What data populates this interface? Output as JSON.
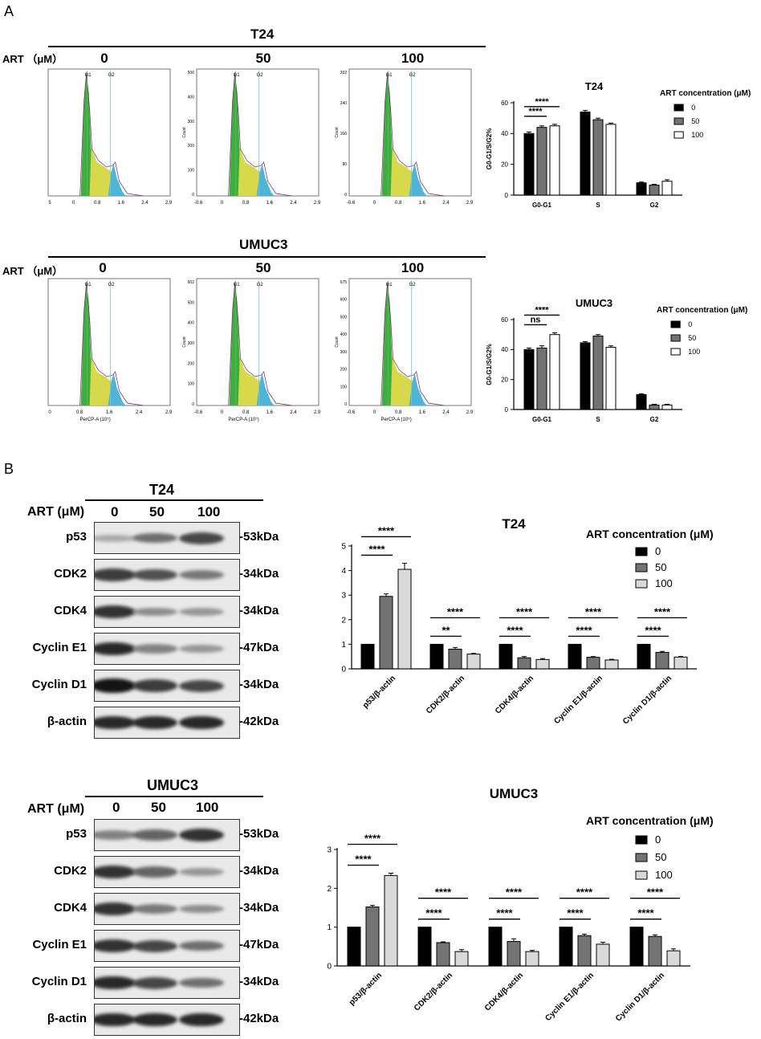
{
  "panels": {
    "a": "A",
    "b": "B"
  },
  "flow": {
    "blocks": [
      {
        "cell": "T24",
        "art_label": "ART （μM）",
        "concs": [
          "0",
          "50",
          "100"
        ],
        "histos": [
          {
            "yticks": [],
            "xticks": [
              "5",
              "0",
              "0.8",
              "1.6",
              "2.4",
              "2.9"
            ],
            "xlabel": "",
            "ylabel": ""
          },
          {
            "yticks": [
              "506",
              "400",
              "300",
              "200",
              "100",
              "0"
            ],
            "xticks": [
              "-0.6",
              "0",
              "0.8",
              "1.6",
              "2.4",
              "2.9"
            ],
            "xlabel": "",
            "ylabel": "Count"
          },
          {
            "yticks": [
              "332",
              "240",
              "160",
              "80",
              "0"
            ],
            "xticks": [
              "-0.6",
              "0",
              "0.8",
              "1.6",
              "2.4",
              "2.9"
            ],
            "xlabel": "",
            "ylabel": "Count"
          }
        ]
      },
      {
        "cell": "UMUC3",
        "art_label": "ART （μM）",
        "concs": [
          "0",
          "50",
          "100"
        ],
        "histos": [
          {
            "yticks": [],
            "xticks": [
              "0",
              "0.8",
              "1.6",
              "2.4",
              "2.9"
            ],
            "xlabel": "PerCP-A (10⁵)",
            "ylabel": ""
          },
          {
            "yticks": [
              "602",
              "500",
              "400",
              "300",
              "200",
              "100",
              "0"
            ],
            "xticks": [
              "-0.6",
              "0",
              "0.8",
              "1.6",
              "2.4",
              "2.9"
            ],
            "xlabel": "PerCP-A (10⁵)",
            "ylabel": "Count"
          },
          {
            "yticks": [
              "675",
              "600",
              "500",
              "400",
              "300",
              "200",
              "100",
              "0"
            ],
            "xticks": [
              "-0.6",
              "0",
              "0.8",
              "1.6",
              "2.4",
              "2.9"
            ],
            "xlabel": "PerCP-A (10⁵)",
            "ylabel": "Count"
          }
        ]
      }
    ],
    "gate_labels": [
      "G1",
      "G2"
    ]
  },
  "western": {
    "blocks": [
      {
        "cell": "T24",
        "art_label": "ART (μM)",
        "concs": [
          "0",
          "50",
          "100"
        ],
        "rows": [
          {
            "protein": "p53",
            "kda": "-53kDa",
            "intensity": [
              0.25,
              0.55,
              0.75
            ]
          },
          {
            "protein": "CDK2",
            "kda": "-34kDa",
            "intensity": [
              0.8,
              0.7,
              0.5
            ]
          },
          {
            "protein": "CDK4",
            "kda": "-34kDa",
            "intensity": [
              0.85,
              0.4,
              0.35
            ]
          },
          {
            "protein": "Cyclin E1",
            "kda": "-47kDa",
            "intensity": [
              0.9,
              0.45,
              0.35
            ]
          },
          {
            "protein": "Cyclin D1",
            "kda": "-34kDa",
            "intensity": [
              1.0,
              0.8,
              0.75
            ]
          },
          {
            "protein": "β-actin",
            "kda": "-42kDa",
            "intensity": [
              0.9,
              0.9,
              0.9
            ]
          }
        ]
      },
      {
        "cell": "UMUC3",
        "art_label": "ART (μM)",
        "concs": [
          "0",
          "50",
          "100"
        ],
        "rows": [
          {
            "protein": "p53",
            "kda": "-53kDa",
            "intensity": [
              0.45,
              0.6,
              0.85
            ]
          },
          {
            "protein": "CDK2",
            "kda": "-34kDa",
            "intensity": [
              0.85,
              0.6,
              0.35
            ]
          },
          {
            "protein": "CDK4",
            "kda": "-34kDa",
            "intensity": [
              0.85,
              0.5,
              0.4
            ]
          },
          {
            "protein": "Cyclin E1",
            "kda": "-47kDa",
            "intensity": [
              0.85,
              0.75,
              0.55
            ]
          },
          {
            "protein": "Cyclin D1",
            "kda": "-34kDa",
            "intensity": [
              0.9,
              0.75,
              0.55
            ]
          },
          {
            "protein": "β-actin",
            "kda": "-42kDa",
            "intensity": [
              0.9,
              0.9,
              0.9
            ]
          }
        ]
      }
    ]
  },
  "colors": {
    "c0": "#000000",
    "c50": "#737373",
    "c100_flow": "#ffffff",
    "c100_wb": "#d9d9d9"
  },
  "chart_data": [
    {
      "type": "bar",
      "title": "T24",
      "ylabel": "G0-G1/S/G2%",
      "categories": [
        "G0-G1",
        "S",
        "G2"
      ],
      "legend_title": "ART concentration (μM)",
      "ylim": [
        0,
        60
      ],
      "yticks": [
        0,
        20,
        40,
        60
      ],
      "series": [
        {
          "name": "0",
          "values": [
            40,
            54,
            8
          ],
          "errors": [
            1.0,
            1.0,
            0.5
          ]
        },
        {
          "name": "50",
          "values": [
            44,
            49,
            6.5
          ],
          "errors": [
            1.0,
            1.0,
            0.5
          ]
        },
        {
          "name": "100",
          "values": [
            45,
            46,
            9
          ],
          "errors": [
            1.0,
            0.8,
            1.0
          ]
        }
      ],
      "annotations": [
        {
          "text": "****",
          "from": 0,
          "to": 1,
          "cat": 0
        },
        {
          "text": "****",
          "from": 0,
          "to": 2,
          "cat": 0
        }
      ]
    },
    {
      "type": "bar",
      "title": "UMUC3",
      "ylabel": "G0-G1/S/G2%",
      "categories": [
        "G0-G1",
        "S",
        "G2"
      ],
      "legend_title": "ART concentration (μM)",
      "ylim": [
        0,
        60
      ],
      "yticks": [
        0,
        20,
        40,
        60
      ],
      "series": [
        {
          "name": "0",
          "values": [
            40,
            44.5,
            10
          ],
          "errors": [
            1.0,
            0.8,
            0.5
          ]
        },
        {
          "name": "50",
          "values": [
            41,
            49,
            3
          ],
          "errors": [
            1.5,
            1.0,
            0.5
          ]
        },
        {
          "name": "100",
          "values": [
            50,
            41.5,
            3
          ],
          "errors": [
            1.2,
            1.0,
            0.5
          ]
        }
      ],
      "annotations": [
        {
          "text": "ns",
          "from": 0,
          "to": 1,
          "cat": 0
        },
        {
          "text": "****",
          "from": 0,
          "to": 2,
          "cat": 0
        }
      ]
    },
    {
      "type": "bar",
      "title": "T24",
      "ylabel": "",
      "categories": [
        "p53/β-actin",
        "CDK2/β-actin",
        "CDK4/β-actin",
        "Cyclin E1/β-actin",
        "Cyclin D1/β-actin"
      ],
      "legend_title": "ART concentration (μM)",
      "ylim": [
        0,
        5
      ],
      "yticks": [
        0,
        1,
        2,
        3,
        4,
        5
      ],
      "series": [
        {
          "name": "0",
          "values": [
            1,
            1,
            1,
            1,
            1
          ],
          "errors": [
            0,
            0,
            0,
            0,
            0
          ]
        },
        {
          "name": "50",
          "values": [
            2.95,
            0.8,
            0.45,
            0.47,
            0.67
          ],
          "errors": [
            0.1,
            0.07,
            0.05,
            0.03,
            0.04
          ]
        },
        {
          "name": "100",
          "values": [
            4.05,
            0.6,
            0.38,
            0.36,
            0.48
          ],
          "errors": [
            0.25,
            0.03,
            0.04,
            0.03,
            0.02
          ]
        }
      ],
      "annotations": [
        {
          "text": "****",
          "from": 0,
          "to": 1,
          "cat": 0
        },
        {
          "text": "****",
          "from": 0,
          "to": 2,
          "cat": 0
        },
        {
          "text": "**",
          "from": 0,
          "to": 1,
          "cat": 1
        },
        {
          "text": "****",
          "from": 0,
          "to": 2,
          "cat": 1
        },
        {
          "text": "****",
          "from": 0,
          "to": 1,
          "cat": 2
        },
        {
          "text": "****",
          "from": 0,
          "to": 2,
          "cat": 2
        },
        {
          "text": "****",
          "from": 0,
          "to": 1,
          "cat": 3
        },
        {
          "text": "****",
          "from": 0,
          "to": 2,
          "cat": 3
        },
        {
          "text": "****",
          "from": 0,
          "to": 1,
          "cat": 4
        },
        {
          "text": "****",
          "from": 0,
          "to": 2,
          "cat": 4
        }
      ]
    },
    {
      "type": "bar",
      "title": "UMUC3",
      "ylabel": "",
      "categories": [
        "p53/β-actin",
        "CDK2/β-actin",
        "CDK4/β-actin",
        "Cyclin E1/β-actin",
        "Cyclin D1/β-actin"
      ],
      "legend_title": "ART concentration (μM)",
      "ylim": [
        0,
        3
      ],
      "yticks": [
        0,
        1,
        2,
        3
      ],
      "series": [
        {
          "name": "0",
          "values": [
            1,
            1,
            1,
            1,
            1
          ],
          "errors": [
            0,
            0,
            0,
            0,
            0
          ]
        },
        {
          "name": "50",
          "values": [
            1.52,
            0.6,
            0.63,
            0.78,
            0.76
          ],
          "errors": [
            0.04,
            0.02,
            0.07,
            0.04,
            0.04
          ]
        },
        {
          "name": "100",
          "values": [
            2.33,
            0.37,
            0.37,
            0.56,
            0.39
          ],
          "errors": [
            0.06,
            0.05,
            0.03,
            0.05,
            0.05
          ]
        }
      ],
      "annotations": [
        {
          "text": "****",
          "from": 0,
          "to": 1,
          "cat": 0
        },
        {
          "text": "****",
          "from": 0,
          "to": 2,
          "cat": 0
        },
        {
          "text": "****",
          "from": 0,
          "to": 1,
          "cat": 1
        },
        {
          "text": "****",
          "from": 0,
          "to": 2,
          "cat": 1
        },
        {
          "text": "****",
          "from": 0,
          "to": 1,
          "cat": 2
        },
        {
          "text": "****",
          "from": 0,
          "to": 2,
          "cat": 2
        },
        {
          "text": "****",
          "from": 0,
          "to": 1,
          "cat": 3
        },
        {
          "text": "****",
          "from": 0,
          "to": 2,
          "cat": 3
        },
        {
          "text": "****",
          "from": 0,
          "to": 1,
          "cat": 4
        },
        {
          "text": "****",
          "from": 0,
          "to": 2,
          "cat": 4
        }
      ]
    }
  ]
}
